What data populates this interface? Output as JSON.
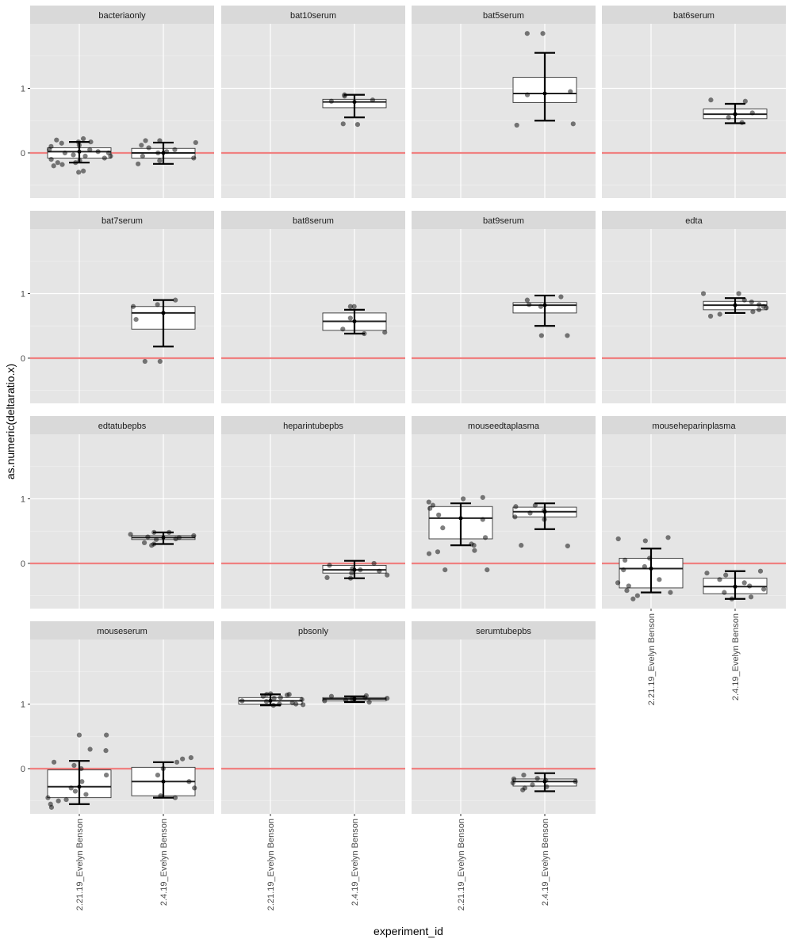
{
  "chart_data": {
    "type": "boxplot",
    "xlabel": "experiment_id",
    "ylabel": "as.numeric(deltaratio.x)",
    "categories": [
      "2.21.19_Evelyn Benson",
      "2.4.19_Evelyn Benson"
    ],
    "y_ticks": [
      0,
      1
    ],
    "ylim": [
      -0.7,
      2.0
    ],
    "reference_line": {
      "y": 0,
      "color": "#f08080"
    },
    "grid": true,
    "panel_background": "#e5e5e5",
    "strip_background": "#d9d9d9",
    "facets": [
      {
        "label": "bacteriaonly",
        "boxes": [
          {
            "category": "2.21.19_Evelyn Benson",
            "q1": -0.08,
            "median": 0.02,
            "q3": 0.08,
            "whisker_low": -0.15,
            "whisker_high": 0.17,
            "points": [
              -0.3,
              -0.28,
              -0.2,
              -0.18,
              -0.15,
              -0.12,
              -0.1,
              -0.08,
              -0.05,
              -0.03,
              0.0,
              0.02,
              0.05,
              0.1,
              0.12,
              0.15,
              0.17,
              0.2,
              0.22,
              0.17,
              -0.15,
              0.05,
              0.0,
              -0.05
            ]
          },
          {
            "category": "2.4.19_Evelyn Benson",
            "q1": -0.08,
            "median": 0.0,
            "q3": 0.07,
            "whisker_low": -0.17,
            "whisker_high": 0.16,
            "points": [
              -0.17,
              -0.12,
              -0.08,
              -0.05,
              0.0,
              0.02,
              0.05,
              0.08,
              0.12,
              0.16,
              0.19,
              0.19
            ]
          }
        ]
      },
      {
        "label": "bat10serum",
        "boxes": [
          {
            "category": "2.4.19_Evelyn Benson",
            "q1": 0.7,
            "median": 0.79,
            "q3": 0.83,
            "whisker_low": 0.55,
            "whisker_high": 0.9,
            "points": [
              0.44,
              0.45,
              0.8,
              0.82,
              0.88,
              0.9
            ]
          }
        ]
      },
      {
        "label": "bat5serum",
        "boxes": [
          {
            "category": "2.4.19_Evelyn Benson",
            "q1": 0.78,
            "median": 0.92,
            "q3": 1.17,
            "whisker_low": 0.5,
            "whisker_high": 1.55,
            "points": [
              0.43,
              0.45,
              0.9,
              0.95,
              1.85,
              1.85
            ]
          }
        ]
      },
      {
        "label": "bat6serum",
        "boxes": [
          {
            "category": "2.4.19_Evelyn Benson",
            "q1": 0.53,
            "median": 0.6,
            "q3": 0.68,
            "whisker_low": 0.46,
            "whisker_high": 0.76,
            "points": [
              0.47,
              0.55,
              0.62,
              0.8,
              0.82
            ]
          }
        ]
      },
      {
        "label": "bat7serum",
        "boxes": [
          {
            "category": "2.4.19_Evelyn Benson",
            "q1": 0.45,
            "median": 0.7,
            "q3": 0.8,
            "whisker_low": 0.18,
            "whisker_high": 0.9,
            "points": [
              -0.05,
              -0.05,
              0.6,
              0.8,
              0.83,
              0.9
            ]
          }
        ]
      },
      {
        "label": "bat8serum",
        "boxes": [
          {
            "category": "2.4.19_Evelyn Benson",
            "q1": 0.43,
            "median": 0.57,
            "q3": 0.7,
            "whisker_low": 0.38,
            "whisker_high": 0.75,
            "points": [
              0.38,
              0.4,
              0.45,
              0.62,
              0.8,
              0.8
            ]
          }
        ]
      },
      {
        "label": "bat9serum",
        "boxes": [
          {
            "category": "2.4.19_Evelyn Benson",
            "q1": 0.7,
            "median": 0.82,
            "q3": 0.86,
            "whisker_low": 0.5,
            "whisker_high": 0.97,
            "points": [
              0.35,
              0.35,
              0.8,
              0.83,
              0.9,
              0.95
            ]
          }
        ]
      },
      {
        "label": "edta",
        "boxes": [
          {
            "category": "2.4.19_Evelyn Benson",
            "q1": 0.75,
            "median": 0.82,
            "q3": 0.88,
            "whisker_low": 0.7,
            "whisker_high": 0.93,
            "points": [
              0.65,
              0.68,
              0.72,
              0.75,
              0.78,
              0.8,
              0.83,
              0.87,
              0.9,
              1.0,
              1.0
            ]
          }
        ]
      },
      {
        "label": "edtatubepbs",
        "boxes": [
          {
            "category": "2.4.19_Evelyn Benson",
            "q1": 0.37,
            "median": 0.4,
            "q3": 0.43,
            "whisker_low": 0.3,
            "whisker_high": 0.48,
            "points": [
              0.28,
              0.3,
              0.32,
              0.37,
              0.38,
              0.4,
              0.41,
              0.43,
              0.45,
              0.48,
              0.48
            ]
          }
        ]
      },
      {
        "label": "heparintubepbs",
        "boxes": [
          {
            "category": "2.4.19_Evelyn Benson",
            "q1": -0.15,
            "median": -0.1,
            "q3": -0.03,
            "whisker_low": -0.23,
            "whisker_high": 0.04,
            "points": [
              -0.23,
              -0.22,
              -0.18,
              -0.15,
              -0.12,
              -0.1,
              -0.08,
              -0.03,
              0.0
            ]
          }
        ]
      },
      {
        "label": "mouseedtaplasma",
        "boxes": [
          {
            "category": "2.21.19_Evelyn Benson",
            "q1": 0.38,
            "median": 0.7,
            "q3": 0.88,
            "whisker_low": 0.28,
            "whisker_high": 0.93,
            "points": [
              -0.1,
              -0.1,
              0.15,
              0.18,
              0.2,
              0.28,
              0.3,
              0.4,
              0.55,
              0.68,
              0.75,
              0.85,
              0.9,
              0.95,
              1.0,
              1.02
            ]
          },
          {
            "category": "2.4.19_Evelyn Benson",
            "q1": 0.72,
            "median": 0.8,
            "q3": 0.87,
            "whisker_low": 0.53,
            "whisker_high": 0.93,
            "points": [
              0.27,
              0.28,
              0.68,
              0.72,
              0.78,
              0.82,
              0.88,
              0.9
            ]
          }
        ]
      },
      {
        "label": "mouseheparinplasma",
        "boxes": [
          {
            "category": "2.21.19_Evelyn Benson",
            "q1": -0.38,
            "median": -0.08,
            "q3": 0.08,
            "whisker_low": -0.45,
            "whisker_high": 0.23,
            "points": [
              -0.55,
              -0.5,
              -0.45,
              -0.42,
              -0.35,
              -0.3,
              -0.25,
              -0.1,
              -0.05,
              0.05,
              0.08,
              0.35,
              0.38,
              0.4
            ]
          },
          {
            "category": "2.4.19_Evelyn Benson",
            "q1": -0.47,
            "median": -0.36,
            "q3": -0.23,
            "whisker_low": -0.55,
            "whisker_high": -0.12,
            "points": [
              -0.55,
              -0.52,
              -0.45,
              -0.4,
              -0.35,
              -0.3,
              -0.25,
              -0.18,
              -0.15,
              -0.12
            ]
          }
        ]
      },
      {
        "label": "mouseserum",
        "boxes": [
          {
            "category": "2.21.19_Evelyn Benson",
            "q1": -0.45,
            "median": -0.28,
            "q3": -0.02,
            "whisker_low": -0.55,
            "whisker_high": 0.12,
            "points": [
              -0.6,
              -0.55,
              -0.5,
              -0.48,
              -0.45,
              -0.4,
              -0.35,
              -0.3,
              -0.2,
              -0.1,
              0.0,
              0.05,
              0.1,
              0.28,
              0.3,
              0.52,
              0.52
            ]
          },
          {
            "category": "2.4.19_Evelyn Benson",
            "q1": -0.42,
            "median": -0.2,
            "q3": 0.02,
            "whisker_low": -0.45,
            "whisker_high": 0.1,
            "points": [
              -0.45,
              -0.42,
              -0.3,
              -0.2,
              -0.1,
              0.0,
              0.1,
              0.15,
              0.17
            ]
          }
        ]
      },
      {
        "label": "pbsonly",
        "boxes": [
          {
            "category": "2.21.19_Evelyn Benson",
            "q1": 1.0,
            "median": 1.05,
            "q3": 1.1,
            "whisker_low": 0.98,
            "whisker_high": 1.15,
            "points": [
              0.98,
              0.99,
              1.0,
              1.02,
              1.04,
              1.05,
              1.07,
              1.09,
              1.1,
              1.12,
              1.14,
              1.15,
              1.16,
              1.15,
              1.0
            ]
          },
          {
            "category": "2.4.19_Evelyn Benson",
            "q1": 1.05,
            "median": 1.08,
            "q3": 1.1,
            "whisker_low": 1.03,
            "whisker_high": 1.12,
            "points": [
              1.03,
              1.05,
              1.06,
              1.08,
              1.09,
              1.1,
              1.12,
              1.13
            ]
          }
        ]
      },
      {
        "label": "serumtubepbs",
        "boxes": [
          {
            "category": "2.4.19_Evelyn Benson",
            "q1": -0.27,
            "median": -0.2,
            "q3": -0.16,
            "whisker_low": -0.35,
            "whisker_high": -0.07,
            "points": [
              -0.33,
              -0.3,
              -0.28,
              -0.25,
              -0.22,
              -0.2,
              -0.18,
              -0.16,
              -0.15,
              -0.1
            ]
          }
        ]
      }
    ]
  }
}
